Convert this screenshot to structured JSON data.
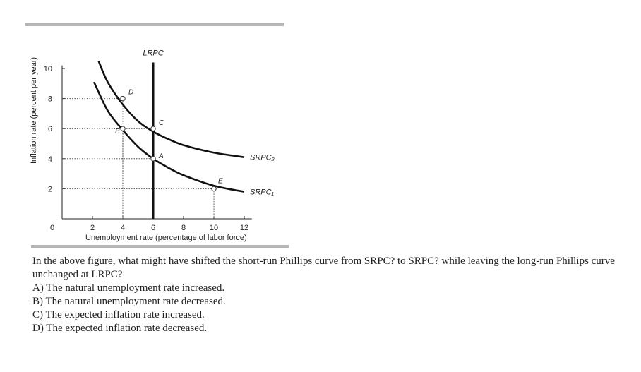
{
  "chart_data": {
    "type": "line",
    "xlabel": "Unemployment rate (percentage of labor force)",
    "ylabel": "Inflation rate (percent per year)",
    "xlim": [
      0,
      12.5
    ],
    "ylim": [
      0,
      10.5
    ],
    "x_ticks": [
      "0",
      "2",
      "4",
      "6",
      "8",
      "10",
      "12"
    ],
    "y_ticks": [
      "2",
      "4",
      "6",
      "8",
      "10"
    ],
    "lrpc": {
      "name": "LRPC",
      "x": 6
    },
    "series": [
      {
        "name": "SRPC₁",
        "x": [
          2.1,
          3,
          4,
          5,
          6,
          7,
          8,
          10,
          12
        ],
        "y": [
          9.1,
          7.2,
          5.9,
          4.8,
          4.0,
          3.4,
          2.9,
          2.2,
          1.8
        ]
      },
      {
        "name": "SRPC₂",
        "x": [
          2.4,
          3,
          4,
          5,
          6,
          7,
          8,
          10,
          12
        ],
        "y": [
          10.5,
          9.1,
          7.6,
          6.5,
          5.8,
          5.3,
          4.9,
          4.4,
          4.1
        ]
      }
    ],
    "points": [
      {
        "label": "A",
        "x": 6,
        "y": 4
      },
      {
        "label": "B",
        "x": 4,
        "y": 6
      },
      {
        "label": "C",
        "x": 6,
        "y": 6
      },
      {
        "label": "D",
        "x": 4,
        "y": 8
      },
      {
        "label": "E",
        "x": 10,
        "y": 2
      }
    ],
    "grid": false
  },
  "question": {
    "text": "In the above figure, what might have shifted the short-run Phillips curve from SRPC? to SRPC? while leaving the long-run Phillips curve unchanged at LRPC?",
    "options": [
      "A) The natural unemployment rate increased.",
      "B) The natural unemployment rate decreased.",
      "C) The expected inflation rate increased.",
      "D) The expected inflation rate decreased."
    ]
  }
}
